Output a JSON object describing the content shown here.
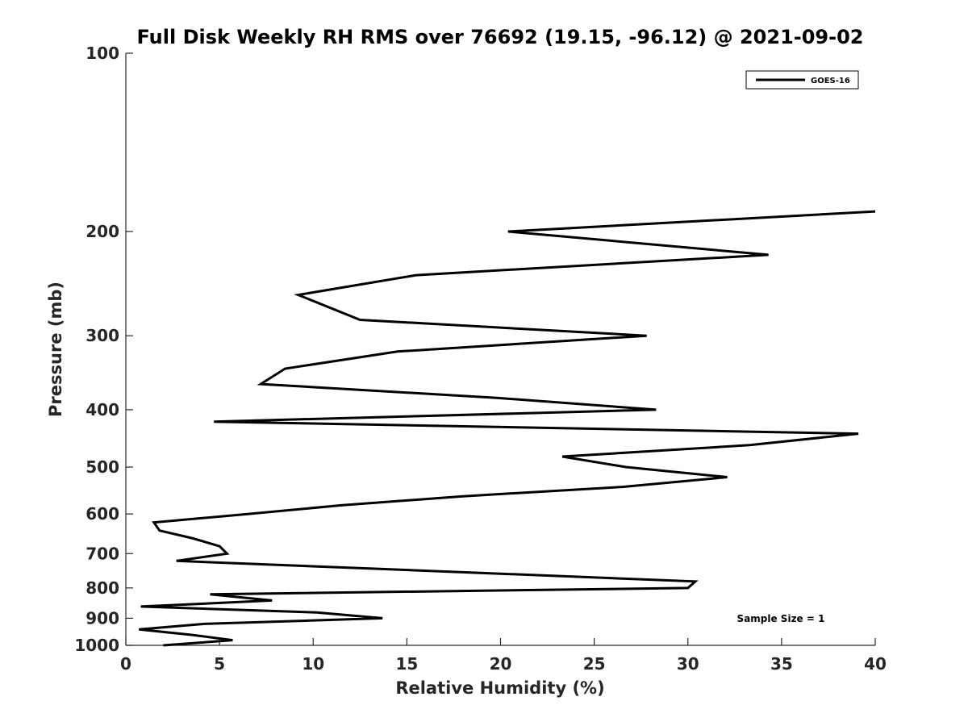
{
  "chart_data": {
    "type": "line",
    "title": "Full Disk Weekly RH RMS over 76692 (19.15, -96.12) @ 2021-09-02",
    "xlabel": "Relative Humidity (%)",
    "ylabel": "Pressure (mb)",
    "xlim": [
      0,
      40
    ],
    "ylim": [
      100,
      1000
    ],
    "y_scale": "log",
    "y_reversed": true,
    "x_ticks": [
      0,
      5,
      10,
      15,
      20,
      25,
      30,
      35,
      40
    ],
    "y_ticks": [
      100,
      200,
      300,
      400,
      500,
      600,
      700,
      800,
      900,
      1000
    ],
    "grid": false,
    "legend_position": "top-right",
    "annotation": "Sample Size = 1",
    "series": [
      {
        "name": "GOES-16",
        "color": "#000000",
        "points": [
          {
            "x": 40.0,
            "y": 185
          },
          {
            "x": 20.4,
            "y": 200
          },
          {
            "x": 34.3,
            "y": 219
          },
          {
            "x": 15.5,
            "y": 237
          },
          {
            "x": 9.2,
            "y": 256
          },
          {
            "x": 12.5,
            "y": 282
          },
          {
            "x": 27.8,
            "y": 300
          },
          {
            "x": 14.5,
            "y": 319
          },
          {
            "x": 8.5,
            "y": 341
          },
          {
            "x": 7.2,
            "y": 362
          },
          {
            "x": 19.8,
            "y": 382
          },
          {
            "x": 28.3,
            "y": 400
          },
          {
            "x": 4.7,
            "y": 419
          },
          {
            "x": 39.1,
            "y": 439
          },
          {
            "x": 33.3,
            "y": 459
          },
          {
            "x": 23.3,
            "y": 480
          },
          {
            "x": 26.7,
            "y": 500
          },
          {
            "x": 32.1,
            "y": 520
          },
          {
            "x": 26.5,
            "y": 540
          },
          {
            "x": 18.0,
            "y": 560
          },
          {
            "x": 11.5,
            "y": 580
          },
          {
            "x": 6.5,
            "y": 600
          },
          {
            "x": 1.5,
            "y": 620
          },
          {
            "x": 1.8,
            "y": 640
          },
          {
            "x": 3.6,
            "y": 660
          },
          {
            "x": 5.0,
            "y": 680
          },
          {
            "x": 5.4,
            "y": 700
          },
          {
            "x": 2.7,
            "y": 720
          },
          {
            "x": 30.4,
            "y": 780
          },
          {
            "x": 30.0,
            "y": 800
          },
          {
            "x": 4.5,
            "y": 820
          },
          {
            "x": 7.8,
            "y": 840
          },
          {
            "x": 0.8,
            "y": 860
          },
          {
            "x": 10.2,
            "y": 880
          },
          {
            "x": 13.7,
            "y": 900
          },
          {
            "x": 4.2,
            "y": 920
          },
          {
            "x": 0.7,
            "y": 940
          },
          {
            "x": 3.5,
            "y": 960
          },
          {
            "x": 5.7,
            "y": 980
          },
          {
            "x": 2.0,
            "y": 1000
          }
        ]
      }
    ]
  }
}
